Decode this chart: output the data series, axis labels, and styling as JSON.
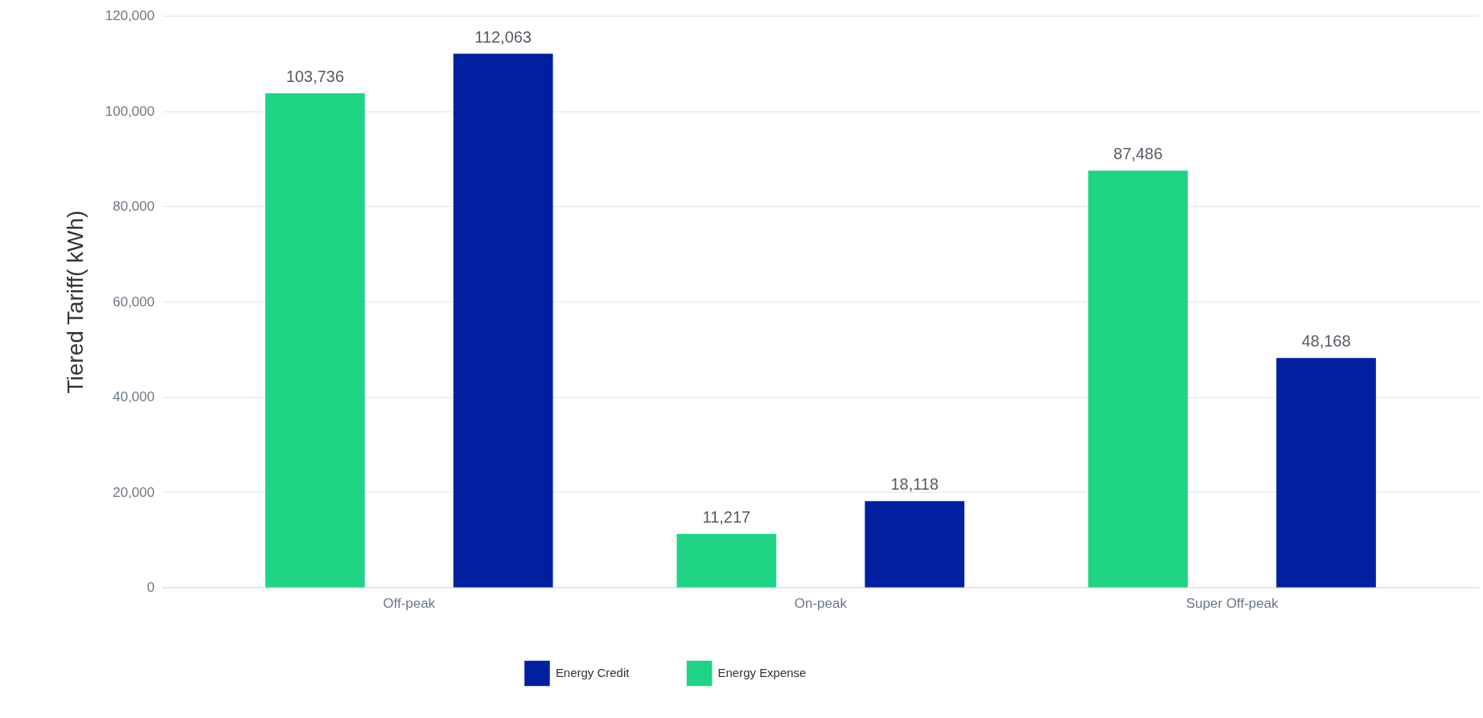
{
  "chart_data": {
    "type": "bar",
    "ylabel": "Tiered Tariff( kWh)",
    "categories": [
      "Off-peak",
      "On-peak",
      "Super Off-peak"
    ],
    "series": [
      {
        "name": "Energy Expense",
        "color": "#20d485",
        "values": [
          103736,
          11217,
          87486
        ],
        "value_labels": [
          "103,736",
          "11,217",
          "87,486"
        ]
      },
      {
        "name": "Energy Credit",
        "color": "#0020a0",
        "values": [
          112063,
          18118,
          48168
        ],
        "value_labels": [
          "112,063",
          "18,118",
          "48,168"
        ]
      }
    ],
    "ylim": [
      0,
      120000
    ],
    "yticks": [
      0,
      {
        "value": 20000,
        "label": "20,000"
      },
      {
        "value": 40000,
        "label": "40,000"
      },
      {
        "value": 60000,
        "label": "60,000"
      },
      {
        "value": 80000,
        "label": "80,000"
      },
      {
        "value": 100000,
        "label": "100,000"
      },
      {
        "value": 120000,
        "label": "120,000"
      }
    ],
    "grid": "y",
    "legend": "bottom"
  }
}
